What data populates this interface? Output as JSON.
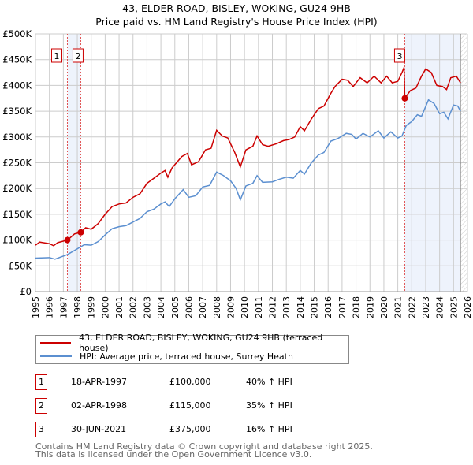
{
  "chart_data": {
    "type": "line",
    "title": "43, ELDER ROAD, BISLEY, WOKING, GU24 9HB",
    "subtitle": "Price paid vs. HM Land Registry's House Price Index (HPI)",
    "xlim": [
      1995,
      2026
    ],
    "ylim": [
      0,
      500000
    ],
    "x_ticks": [
      "1995",
      "1996",
      "1997",
      "1998",
      "1999",
      "2000",
      "2001",
      "2002",
      "2003",
      "2004",
      "2005",
      "2006",
      "2007",
      "2008",
      "2009",
      "2010",
      "2011",
      "2012",
      "2013",
      "2014",
      "2015",
      "2016",
      "2017",
      "2018",
      "2019",
      "2020",
      "2021",
      "2022",
      "2023",
      "2024",
      "2025",
      "2026"
    ],
    "y_ticks": [
      {
        "v": 0,
        "label": "£0"
      },
      {
        "v": 50000,
        "label": "£50K"
      },
      {
        "v": 100000,
        "label": "£100K"
      },
      {
        "v": 150000,
        "label": "£150K"
      },
      {
        "v": 200000,
        "label": "£200K"
      },
      {
        "v": 250000,
        "label": "£250K"
      },
      {
        "v": 300000,
        "label": "£300K"
      },
      {
        "v": 350000,
        "label": "£350K"
      },
      {
        "v": 400000,
        "label": "£400K"
      },
      {
        "v": 450000,
        "label": "£450K"
      },
      {
        "v": 500000,
        "label": "£500K"
      }
    ],
    "grid": true,
    "colors": {
      "property": "#cc0000",
      "hpi": "#5b8fd0",
      "shade": "#eef3fc"
    },
    "shaded_ranges": [
      [
        1997.3,
        1998.25
      ],
      [
        2021.5,
        2025.5
      ]
    ],
    "forecast_from": 2025.5,
    "series": [
      {
        "name": "43, ELDER ROAD, BISLEY, WOKING, GU24 9HB (terraced house)",
        "x": [
          1995,
          1995.3,
          1996,
          1996.3,
          1996.6,
          1997.3,
          1997.8,
          1998.25,
          1998.6,
          1999,
          1999.5,
          2000,
          2000.5,
          2001,
          2001.5,
          2002,
          2002.5,
          2003,
          2003.5,
          2004,
          2004.3,
          2004.5,
          2004.8,
          2005.5,
          2005.9,
          2006.2,
          2006.7,
          2007.2,
          2007.6,
          2008,
          2008.4,
          2008.8,
          2009.3,
          2009.7,
          2010.1,
          2010.6,
          2010.9,
          2011.3,
          2011.7,
          2012.3,
          2012.8,
          2013.2,
          2013.6,
          2014,
          2014.3,
          2014.8,
          2015.3,
          2015.7,
          2016.2,
          2016.5,
          2017,
          2017.4,
          2017.8,
          2018.3,
          2018.8,
          2019.3,
          2019.8,
          2020.2,
          2020.6,
          2021,
          2021.3,
          2021.45,
          2021.5,
          2021.9,
          2022.3,
          2022.7,
          2023,
          2023.4,
          2023.8,
          2024.2,
          2024.5,
          2024.8,
          2025.2,
          2025.5
        ],
        "y": [
          90000,
          96000,
          93000,
          89000,
          95000,
          100000,
          112000,
          115000,
          124000,
          121000,
          132000,
          150000,
          165000,
          170000,
          172000,
          183000,
          190000,
          210000,
          220000,
          230000,
          235000,
          222000,
          240000,
          262000,
          268000,
          246000,
          252000,
          275000,
          278000,
          313000,
          302000,
          298000,
          270000,
          242000,
          275000,
          282000,
          302000,
          285000,
          282000,
          287000,
          293000,
          295000,
          300000,
          320000,
          312000,
          335000,
          355000,
          360000,
          385000,
          398000,
          412000,
          410000,
          398000,
          415000,
          405000,
          418000,
          405000,
          418000,
          405000,
          408000,
          425000,
          435000,
          375000,
          390000,
          395000,
          418000,
          432000,
          425000,
          400000,
          398000,
          392000,
          415000,
          418000,
          405000
        ]
      },
      {
        "name": "HPI: Average price, terraced house, Surrey Heath",
        "x": [
          1995,
          1996,
          1996.4,
          1997.3,
          1998,
          1998.5,
          1999,
          1999.5,
          2000,
          2000.5,
          2001,
          2001.5,
          2002,
          2002.5,
          2003,
          2003.5,
          2004,
          2004.3,
          2004.6,
          2005,
          2005.6,
          2006,
          2006.5,
          2007,
          2007.5,
          2008,
          2008.5,
          2009,
          2009.4,
          2009.7,
          2010.1,
          2010.6,
          2010.9,
          2011.3,
          2012,
          2012.5,
          2013,
          2013.5,
          2014,
          2014.3,
          2014.8,
          2015.3,
          2015.7,
          2016.2,
          2016.7,
          2017.3,
          2017.7,
          2018,
          2018.5,
          2019,
          2019.6,
          2020,
          2020.5,
          2021,
          2021.3,
          2021.6,
          2022,
          2022.4,
          2022.7,
          2023.2,
          2023.6,
          2024,
          2024.3,
          2024.6,
          2025,
          2025.3,
          2025.5
        ],
        "y": [
          65000,
          66000,
          63000,
          72000,
          83000,
          91000,
          90000,
          97000,
          110000,
          122000,
          126000,
          128000,
          135000,
          142000,
          155000,
          160000,
          170000,
          174000,
          165000,
          180000,
          198000,
          183000,
          186000,
          203000,
          206000,
          232000,
          225000,
          215000,
          200000,
          178000,
          205000,
          210000,
          225000,
          212000,
          213000,
          218000,
          222000,
          220000,
          235000,
          228000,
          250000,
          265000,
          270000,
          292000,
          297000,
          307000,
          305000,
          296000,
          307000,
          300000,
          312000,
          298000,
          310000,
          298000,
          302000,
          322000,
          330000,
          343000,
          340000,
          372000,
          365000,
          345000,
          348000,
          335000,
          362000,
          360000,
          350000
        ]
      }
    ],
    "sales": [
      {
        "n": "1",
        "x": 1997.29,
        "y": 100000
      },
      {
        "n": "2",
        "x": 1998.25,
        "y": 115000
      },
      {
        "n": "3",
        "x": 2021.5,
        "y": 375000
      }
    ]
  },
  "legend": {
    "property": "43, ELDER ROAD, BISLEY, WOKING, GU24 9HB (terraced house)",
    "hpi": "HPI: Average price, terraced house, Surrey Heath"
  },
  "transactions": [
    {
      "n": "1",
      "date": "18-APR-1997",
      "price": "£100,000",
      "hpi": "40% ↑ HPI"
    },
    {
      "n": "2",
      "date": "02-APR-1998",
      "price": "£115,000",
      "hpi": "35% ↑ HPI"
    },
    {
      "n": "3",
      "date": "30-JUN-2021",
      "price": "£375,000",
      "hpi": "16% ↑ HPI"
    }
  ],
  "footer": {
    "line1": "Contains HM Land Registry data © Crown copyright and database right 2025.",
    "line2": "This data is licensed under the Open Government Licence v3.0."
  }
}
